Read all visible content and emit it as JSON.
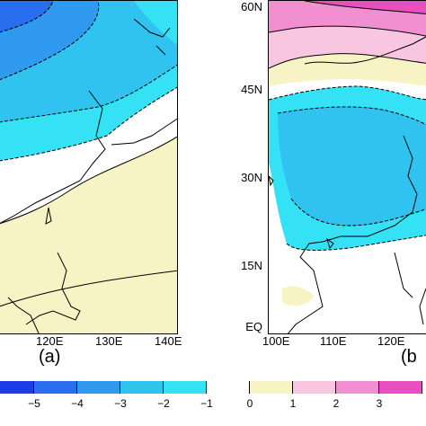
{
  "panel_a": {
    "label": "(a)",
    "x_ticks": [
      "120E",
      "130E",
      "140E"
    ]
  },
  "panel_b": {
    "label": "(b",
    "x_ticks": [
      "100E",
      "110E",
      "120E"
    ],
    "y_ticks": [
      "60N",
      "45N",
      "30N",
      "15N",
      "EQ"
    ]
  },
  "colorbar": {
    "labels": [
      "−5",
      "−4",
      "−3",
      "−2",
      "−1",
      "0",
      "1",
      "2",
      "3"
    ],
    "colors": [
      "#1e3ce6",
      "#2a6ef0",
      "#2f9af0",
      "#31c3f0",
      "#35e1f5",
      "#ffffff",
      "#f7f3c4",
      "#f9c6e1",
      "#f28fd0",
      "#e94fc0"
    ]
  }
}
